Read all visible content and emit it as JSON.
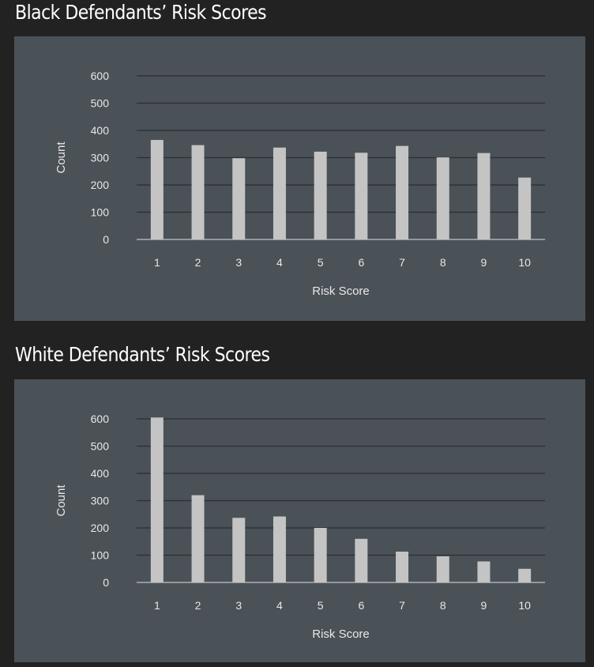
{
  "chart_data": [
    {
      "type": "bar",
      "title": "Black Defendants’ Risk Scores",
      "xlabel": "Risk Score",
      "ylabel": "Count",
      "ylim": [
        0,
        600
      ],
      "yticks": [
        "0",
        "100",
        "200",
        "300",
        "400",
        "500",
        "600"
      ],
      "categories": [
        "1",
        "2",
        "3",
        "4",
        "5",
        "6",
        "7",
        "8",
        "9",
        "10"
      ],
      "values": [
        365,
        346,
        298,
        337,
        322,
        318,
        343,
        301,
        317,
        227
      ],
      "grid": true,
      "bar_color": "#c4c4c4"
    },
    {
      "type": "bar",
      "title": "White Defendants’ Risk Scores",
      "xlabel": "Risk Score",
      "ylabel": "Count",
      "ylim": [
        0,
        600
      ],
      "yticks": [
        "0",
        "100",
        "200",
        "300",
        "400",
        "500",
        "600"
      ],
      "categories": [
        "1",
        "2",
        "3",
        "4",
        "5",
        "6",
        "7",
        "8",
        "9",
        "10"
      ],
      "values": [
        605,
        320,
        237,
        242,
        200,
        160,
        113,
        96,
        77,
        50
      ],
      "grid": true,
      "bar_color": "#c4c4c4"
    }
  ],
  "colors": {
    "page_background": "#222222",
    "panel_background": "#4a5157",
    "gridline": "#2a2f33",
    "axis": "#e0e0e0",
    "label": "#e8e8e8"
  }
}
